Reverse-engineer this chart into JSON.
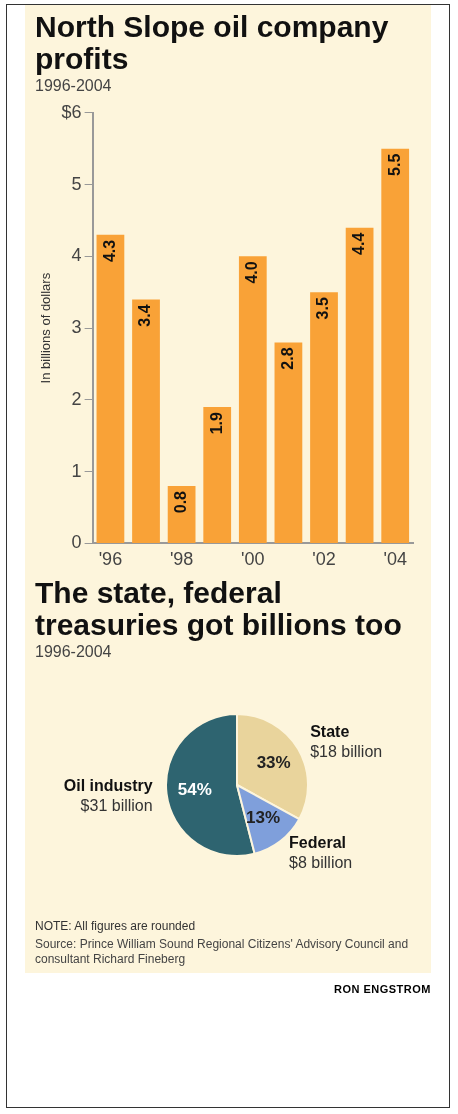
{
  "chart_data": [
    {
      "type": "bar",
      "title": "North Slope oil company profits",
      "subtitle": "1996-2004",
      "ylabel": "In billions of dollars",
      "categories": [
        "'96",
        null,
        "'98",
        null,
        "'00",
        null,
        "'02",
        null,
        "'04"
      ],
      "values": [
        4.3,
        3.4,
        0.8,
        1.9,
        4.0,
        2.8,
        3.5,
        4.4,
        5.5
      ],
      "color": "#f9a237",
      "value_labels": [
        "4.3",
        "3.4",
        "0.8",
        "1.9",
        "4.0",
        "2.8",
        "3.5",
        "4.4",
        "5.5"
      ],
      "ylim": [
        0,
        6
      ],
      "yticks": [
        0,
        1,
        2,
        3,
        4,
        5,
        {
          "value": 6,
          "label": "$6"
        }
      ],
      "grid": false,
      "legend": false
    },
    {
      "type": "pie",
      "title": "The state, federal treasuries got billions too",
      "subtitle": "1996-2004",
      "categories": [
        "Oil industry",
        "State",
        "Federal"
      ],
      "values": [
        54,
        33,
        13
      ],
      "colors": [
        "#2e6470",
        "#e9d49c",
        "#7f9fdb"
      ],
      "value_labels": [
        "54%",
        "33%",
        "13%"
      ],
      "legend": false,
      "annotations": [
        "$31 billion",
        "$18 billion",
        "$8 billion",
        "NOTE: All figures are rounded",
        "Source: Prince William Sound Regional Citizens' Advisory Council and consultant Richard Fineberg",
        "RON ENGSTROM"
      ]
    }
  ]
}
